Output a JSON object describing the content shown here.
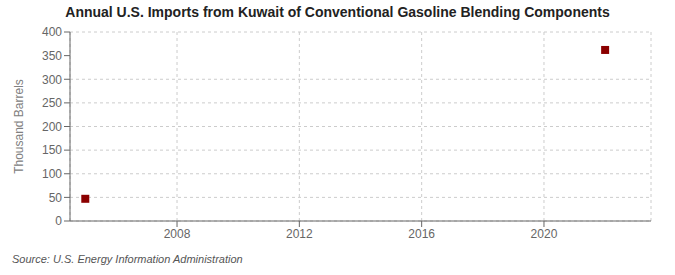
{
  "chart_data": {
    "type": "scatter",
    "title": "Annual U.S. Imports from Kuwait of Conventional Gasoline Blending Components",
    "ylabel": "Thousand Barrels",
    "source": "Source: U.S. Energy Information Administration",
    "x": [
      2005,
      2022
    ],
    "values": [
      47,
      362
    ],
    "color": "#8b0000",
    "marker": "square",
    "xlim": [
      2004.5,
      2023.5
    ],
    "xticks": [
      2008,
      2012,
      2016,
      2020
    ],
    "ylim": [
      0,
      400
    ],
    "yticks": [
      0,
      50,
      100,
      150,
      200,
      250,
      300,
      350,
      400
    ],
    "grid": true
  }
}
